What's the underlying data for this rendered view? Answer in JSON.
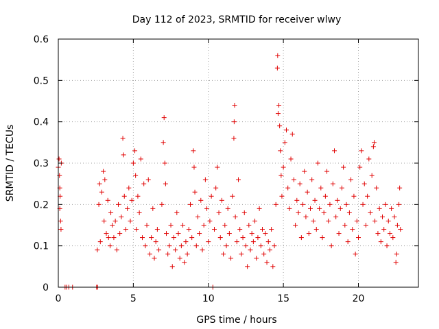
{
  "chart_data": {
    "type": "scatter",
    "title": "Day 112 of 2023, SRMTID for receiver wlwy",
    "xlabel": "GPS time / hours",
    "ylabel": "SRMTID / TECUs",
    "xlim": [
      0,
      24
    ],
    "ylim": [
      0,
      0.6
    ],
    "xticks": [
      0,
      5,
      10,
      15,
      20
    ],
    "xtick_labels": [
      "0",
      "5",
      "10",
      "15",
      "20"
    ],
    "yticks": [
      0,
      0.1,
      0.2,
      0.3,
      0.4,
      0.5,
      0.6
    ],
    "ytick_labels": [
      "0",
      "0.1",
      "0.2",
      "0.3",
      "0.4",
      "0.5",
      "0.6"
    ],
    "grid": true,
    "marker": "+",
    "color": "#e00000",
    "series": [
      {
        "name": "SRMTID",
        "points": [
          [
            0.0,
            0.29
          ],
          [
            0.05,
            0.31
          ],
          [
            0.08,
            0.27
          ],
          [
            0.1,
            0.24
          ],
          [
            0.12,
            0.22
          ],
          [
            0.15,
            0.16
          ],
          [
            0.18,
            0.14
          ],
          [
            0.2,
            0.3
          ],
          [
            0.1,
            0.19
          ],
          [
            0.45,
            0.0
          ],
          [
            0.55,
            0.0
          ],
          [
            0.7,
            0.0
          ],
          [
            0.95,
            0.0
          ],
          [
            2.55,
            0.0
          ],
          [
            2.62,
            0.0
          ],
          [
            10.3,
            0.0
          ],
          [
            2.6,
            0.09
          ],
          [
            2.7,
            0.2
          ],
          [
            2.75,
            0.25
          ],
          [
            2.8,
            0.11
          ],
          [
            2.9,
            0.23
          ],
          [
            3.0,
            0.28
          ],
          [
            3.05,
            0.16
          ],
          [
            3.1,
            0.26
          ],
          [
            3.2,
            0.13
          ],
          [
            3.3,
            0.21
          ],
          [
            3.35,
            0.12
          ],
          [
            3.45,
            0.1
          ],
          [
            3.5,
            0.18
          ],
          [
            3.6,
            0.15
          ],
          [
            3.7,
            0.12
          ],
          [
            3.8,
            0.16
          ],
          [
            3.9,
            0.09
          ],
          [
            4.0,
            0.2
          ],
          [
            4.1,
            0.13
          ],
          [
            4.2,
            0.17
          ],
          [
            4.3,
            0.36
          ],
          [
            4.35,
            0.32
          ],
          [
            4.4,
            0.22
          ],
          [
            4.5,
            0.14
          ],
          [
            4.6,
            0.19
          ],
          [
            4.7,
            0.24
          ],
          [
            4.8,
            0.16
          ],
          [
            4.9,
            0.21
          ],
          [
            5.0,
            0.3
          ],
          [
            5.1,
            0.33
          ],
          [
            5.15,
            0.27
          ],
          [
            5.2,
            0.14
          ],
          [
            5.3,
            0.22
          ],
          [
            5.4,
            0.18
          ],
          [
            5.5,
            0.31
          ],
          [
            5.6,
            0.12
          ],
          [
            5.7,
            0.25
          ],
          [
            5.8,
            0.1
          ],
          [
            5.9,
            0.15
          ],
          [
            6.0,
            0.26
          ],
          [
            6.1,
            0.08
          ],
          [
            6.2,
            0.12
          ],
          [
            6.3,
            0.19
          ],
          [
            6.4,
            0.07
          ],
          [
            6.5,
            0.11
          ],
          [
            6.6,
            0.14
          ],
          [
            6.7,
            0.09
          ],
          [
            6.9,
            0.2
          ],
          [
            7.0,
            0.35
          ],
          [
            7.05,
            0.41
          ],
          [
            7.1,
            0.3
          ],
          [
            7.15,
            0.25
          ],
          [
            7.2,
            0.13
          ],
          [
            7.3,
            0.08
          ],
          [
            7.4,
            0.1
          ],
          [
            7.5,
            0.15
          ],
          [
            7.6,
            0.05
          ],
          [
            7.7,
            0.12
          ],
          [
            7.8,
            0.09
          ],
          [
            7.9,
            0.18
          ],
          [
            8.0,
            0.13
          ],
          [
            8.1,
            0.07
          ],
          [
            8.2,
            0.1
          ],
          [
            8.3,
            0.15
          ],
          [
            8.4,
            0.06
          ],
          [
            8.5,
            0.11
          ],
          [
            8.6,
            0.08
          ],
          [
            8.7,
            0.14
          ],
          [
            8.8,
            0.2
          ],
          [
            8.9,
            0.12
          ],
          [
            9.0,
            0.33
          ],
          [
            9.05,
            0.29
          ],
          [
            9.1,
            0.23
          ],
          [
            9.2,
            0.1
          ],
          [
            9.3,
            0.17
          ],
          [
            9.4,
            0.13
          ],
          [
            9.5,
            0.21
          ],
          [
            9.6,
            0.09
          ],
          [
            9.7,
            0.15
          ],
          [
            9.8,
            0.26
          ],
          [
            9.9,
            0.19
          ],
          [
            10.0,
            0.11
          ],
          [
            10.1,
            0.16
          ],
          [
            10.2,
            0.22
          ],
          [
            10.4,
            0.14
          ],
          [
            10.5,
            0.24
          ],
          [
            10.6,
            0.29
          ],
          [
            10.7,
            0.18
          ],
          [
            10.8,
            0.12
          ],
          [
            10.9,
            0.21
          ],
          [
            11.0,
            0.08
          ],
          [
            11.1,
            0.15
          ],
          [
            11.2,
            0.1
          ],
          [
            11.3,
            0.19
          ],
          [
            11.4,
            0.13
          ],
          [
            11.5,
            0.07
          ],
          [
            11.6,
            0.22
          ],
          [
            11.7,
            0.36
          ],
          [
            11.72,
            0.4
          ],
          [
            11.75,
            0.44
          ],
          [
            11.8,
            0.17
          ],
          [
            11.9,
            0.11
          ],
          [
            12.0,
            0.26
          ],
          [
            12.1,
            0.14
          ],
          [
            12.2,
            0.08
          ],
          [
            12.3,
            0.12
          ],
          [
            12.4,
            0.18
          ],
          [
            12.5,
            0.1
          ],
          [
            12.6,
            0.05
          ],
          [
            12.7,
            0.15
          ],
          [
            12.8,
            0.09
          ],
          [
            12.9,
            0.13
          ],
          [
            13.0,
            0.11
          ],
          [
            13.1,
            0.16
          ],
          [
            13.2,
            0.07
          ],
          [
            13.3,
            0.12
          ],
          [
            13.4,
            0.19
          ],
          [
            13.5,
            0.1
          ],
          [
            13.6,
            0.14
          ],
          [
            13.7,
            0.08
          ],
          [
            13.8,
            0.13
          ],
          [
            13.9,
            0.06
          ],
          [
            14.0,
            0.11
          ],
          [
            14.1,
            0.09
          ],
          [
            14.2,
            0.14
          ],
          [
            14.3,
            0.05
          ],
          [
            14.4,
            0.1
          ],
          [
            14.5,
            0.2
          ],
          [
            14.6,
            0.53
          ],
          [
            14.62,
            0.56
          ],
          [
            14.65,
            0.42
          ],
          [
            14.7,
            0.44
          ],
          [
            14.75,
            0.39
          ],
          [
            14.8,
            0.33
          ],
          [
            14.85,
            0.27
          ],
          [
            14.9,
            0.22
          ],
          [
            15.0,
            0.29
          ],
          [
            15.1,
            0.35
          ],
          [
            15.2,
            0.38
          ],
          [
            15.3,
            0.24
          ],
          [
            15.4,
            0.19
          ],
          [
            15.5,
            0.31
          ],
          [
            15.6,
            0.37
          ],
          [
            15.7,
            0.26
          ],
          [
            15.8,
            0.15
          ],
          [
            15.9,
            0.21
          ],
          [
            16.0,
            0.18
          ],
          [
            16.1,
            0.25
          ],
          [
            16.2,
            0.12
          ],
          [
            16.3,
            0.2
          ],
          [
            16.4,
            0.28
          ],
          [
            16.5,
            0.17
          ],
          [
            16.6,
            0.23
          ],
          [
            16.7,
            0.13
          ],
          [
            16.8,
            0.19
          ],
          [
            16.9,
            0.26
          ],
          [
            17.0,
            0.16
          ],
          [
            17.1,
            0.21
          ],
          [
            17.2,
            0.14
          ],
          [
            17.3,
            0.3
          ],
          [
            17.4,
            0.19
          ],
          [
            17.5,
            0.24
          ],
          [
            17.6,
            0.12
          ],
          [
            17.7,
            0.18
          ],
          [
            17.8,
            0.22
          ],
          [
            17.9,
            0.28
          ],
          [
            18.0,
            0.16
          ],
          [
            18.1,
            0.2
          ],
          [
            18.2,
            0.1
          ],
          [
            18.3,
            0.25
          ],
          [
            18.4,
            0.33
          ],
          [
            18.5,
            0.17
          ],
          [
            18.6,
            0.21
          ],
          [
            18.7,
            0.13
          ],
          [
            18.8,
            0.19
          ],
          [
            18.9,
            0.24
          ],
          [
            19.0,
            0.29
          ],
          [
            19.1,
            0.15
          ],
          [
            19.2,
            0.2
          ],
          [
            19.3,
            0.11
          ],
          [
            19.4,
            0.18
          ],
          [
            19.5,
            0.26
          ],
          [
            19.6,
            0.14
          ],
          [
            19.7,
            0.22
          ],
          [
            19.8,
            0.08
          ],
          [
            19.9,
            0.16
          ],
          [
            20.0,
            0.12
          ],
          [
            20.1,
            0.29
          ],
          [
            20.2,
            0.33
          ],
          [
            20.3,
            0.2
          ],
          [
            20.4,
            0.25
          ],
          [
            20.5,
            0.15
          ],
          [
            20.6,
            0.22
          ],
          [
            20.7,
            0.31
          ],
          [
            20.8,
            0.18
          ],
          [
            20.9,
            0.27
          ],
          [
            21.0,
            0.34
          ],
          [
            21.05,
            0.35
          ],
          [
            21.1,
            0.16
          ],
          [
            21.2,
            0.24
          ],
          [
            21.3,
            0.13
          ],
          [
            21.4,
            0.19
          ],
          [
            21.5,
            0.11
          ],
          [
            21.6,
            0.17
          ],
          [
            21.7,
            0.14
          ],
          [
            21.8,
            0.2
          ],
          [
            21.9,
            0.1
          ],
          [
            22.0,
            0.16
          ],
          [
            22.1,
            0.13
          ],
          [
            22.2,
            0.19
          ],
          [
            22.3,
            0.12
          ],
          [
            22.4,
            0.17
          ],
          [
            22.5,
            0.06
          ],
          [
            22.55,
            0.08
          ],
          [
            22.6,
            0.15
          ],
          [
            22.7,
            0.2
          ],
          [
            22.75,
            0.24
          ],
          [
            22.8,
            0.14
          ]
        ]
      }
    ]
  }
}
